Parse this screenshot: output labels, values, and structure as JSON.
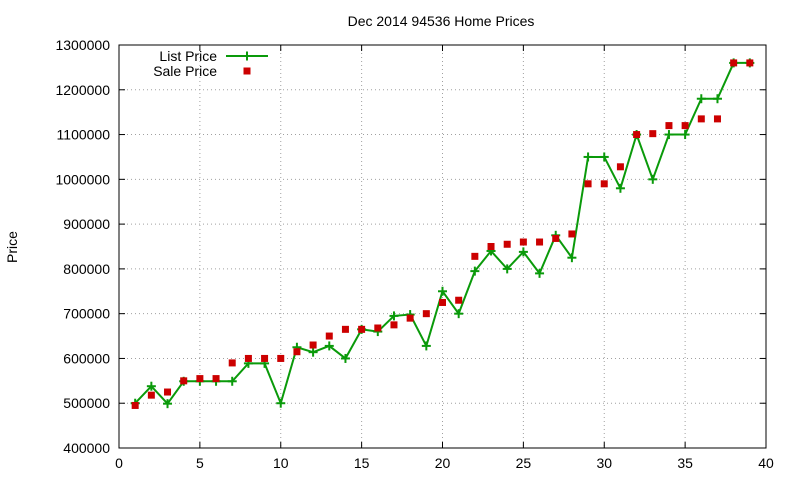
{
  "chart_data": {
    "type": "line",
    "title": "Dec 2014 94536 Home Prices",
    "xlabel": "",
    "ylabel": "Price",
    "xlim": [
      0,
      40
    ],
    "ylim": [
      400000,
      1300000
    ],
    "xticks": [
      0,
      5,
      10,
      15,
      20,
      25,
      30,
      35,
      40
    ],
    "yticks": [
      400000,
      500000,
      600000,
      700000,
      800000,
      900000,
      1000000,
      1100000,
      1200000,
      1300000
    ],
    "grid": true,
    "legend_position": "top-left",
    "series": [
      {
        "name": "List Price",
        "style": "line-with-plus-markers",
        "color": "#0a9a0a",
        "x": [
          1,
          2,
          3,
          4,
          5,
          6,
          7,
          8,
          9,
          10,
          11,
          12,
          13,
          14,
          15,
          16,
          17,
          18,
          19,
          20,
          21,
          22,
          23,
          24,
          25,
          26,
          27,
          28,
          29,
          30,
          31,
          32,
          33,
          34,
          35,
          36,
          37,
          38,
          39
        ],
        "values": [
          500000,
          538000,
          499000,
          549000,
          549000,
          549000,
          549000,
          589000,
          589000,
          500000,
          625000,
          614000,
          628000,
          600000,
          665000,
          660000,
          695000,
          698000,
          628000,
          750000,
          700000,
          795000,
          840000,
          800000,
          838000,
          790000,
          875000,
          825000,
          1050000,
          1050000,
          980000,
          1100000,
          1000000,
          1100000,
          1100000,
          1180000,
          1180000,
          1260000,
          1260000
        ]
      },
      {
        "name": "Sale Price",
        "style": "square-markers",
        "color": "#cc0000",
        "x": [
          1,
          2,
          3,
          4,
          5,
          6,
          7,
          8,
          9,
          10,
          11,
          12,
          13,
          14,
          15,
          16,
          17,
          18,
          19,
          20,
          21,
          22,
          23,
          24,
          25,
          26,
          27,
          28,
          29,
          30,
          31,
          32,
          33,
          34,
          35,
          36,
          37,
          38,
          39
        ],
        "values": [
          495000,
          518000,
          525000,
          550000,
          555000,
          555000,
          590000,
          600000,
          600000,
          600000,
          615000,
          630000,
          650000,
          665000,
          665000,
          668000,
          675000,
          690000,
          700000,
          725000,
          730000,
          828000,
          850000,
          855000,
          860000,
          860000,
          868000,
          878000,
          990000,
          990000,
          1028000,
          1100000,
          1102000,
          1120000,
          1120000,
          1135000,
          1135000,
          1260000,
          1260000
        ]
      }
    ]
  }
}
